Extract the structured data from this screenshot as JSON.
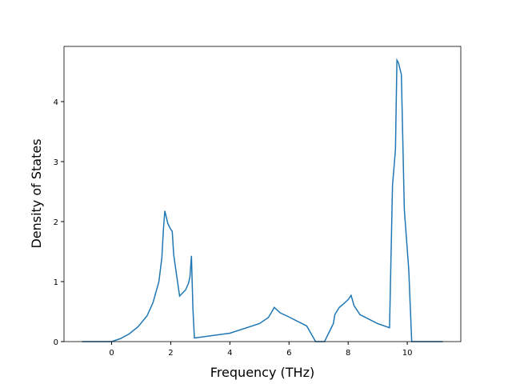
{
  "chart_data": {
    "type": "line",
    "x_label": "Frequency (THz)",
    "y_label": "Density of States",
    "xlim": [
      -1.61,
      11.81
    ],
    "ylim": [
      0,
      4.92
    ],
    "xticks": [
      0,
      2,
      4,
      6,
      8,
      10
    ],
    "yticks": [
      0,
      1,
      2,
      3,
      4
    ],
    "series": [
      {
        "color": "#1f77b4",
        "x": [
          -1.0,
          0,
          0.3,
          0.6,
          0.9,
          1.2,
          1.4,
          1.6,
          1.7,
          1.75,
          1.8,
          1.9,
          2.0,
          2.05,
          2.1,
          2.2,
          2.3,
          2.5,
          2.6,
          2.65,
          2.7,
          2.75,
          2.8,
          4.0,
          5.0,
          5.3,
          5.4,
          5.5,
          5.7,
          6.0,
          6.6,
          6.9,
          7.2,
          7.4,
          7.5,
          7.55,
          7.7,
          7.8,
          8.0,
          8.1,
          8.2,
          8.4,
          9.0,
          9.4,
          9.5,
          9.6,
          9.65,
          9.7,
          9.8,
          9.9,
          10.05,
          10.15,
          11.2
        ],
        "values": [
          0,
          0,
          0.05,
          0.13,
          0.25,
          0.43,
          0.65,
          1.0,
          1.4,
          1.85,
          2.18,
          1.97,
          1.87,
          1.84,
          1.45,
          1.1,
          0.76,
          0.86,
          0.97,
          1.08,
          1.43,
          0.55,
          0.06,
          0.14,
          0.3,
          0.4,
          0.48,
          0.57,
          0.48,
          0.41,
          0.26,
          0.0,
          0.0,
          0.2,
          0.3,
          0.45,
          0.57,
          0.61,
          0.7,
          0.77,
          0.6,
          0.45,
          0.3,
          0.23,
          2.6,
          3.2,
          4.69,
          4.65,
          4.45,
          2.2,
          1.2,
          0.0,
          0.0
        ]
      }
    ]
  }
}
